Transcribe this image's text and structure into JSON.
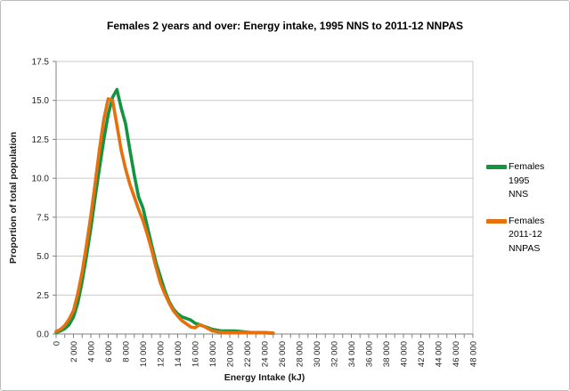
{
  "chart_data": {
    "type": "line",
    "title": "Females 2 years and over: Energy intake, 1995 NNS to 2011-12 NNPAS",
    "xlabel": "Energy Intake (kJ)",
    "ylabel": "Proportion of total population",
    "xlim": [
      0,
      48000
    ],
    "ylim": [
      0,
      17.5
    ],
    "grid": "horizontal",
    "legend_position": "right",
    "x_tick_minor_step": 1000,
    "x_tick_label_step": 2000,
    "y_tick_step": 2.5,
    "x_tick_labels": [
      "0",
      "2 000",
      "4 000",
      "6 000",
      "8 000",
      "10 000",
      "12 000",
      "14 000",
      "16 000",
      "18 000",
      "20 000",
      "22 000",
      "24 000",
      "26 000",
      "28 000",
      "30 000",
      "32 000",
      "34 000",
      "36 000",
      "38 000",
      "40 000",
      "42 000",
      "44 000",
      "46 000",
      "48 000"
    ],
    "y_tick_labels": [
      "0.0",
      "2.5",
      "5.0",
      "7.5",
      "10.0",
      "12.5",
      "15.0",
      "17.5"
    ],
    "series": [
      {
        "name": "Females 1995 NNS",
        "color": "#149441",
        "x_start": 0,
        "x_step": 500,
        "values": [
          0.1,
          0.2,
          0.35,
          0.6,
          1.1,
          2.0,
          3.4,
          5.0,
          6.8,
          8.8,
          10.7,
          12.5,
          14.1,
          15.2,
          15.7,
          14.5,
          13.5,
          11.8,
          10.2,
          8.8,
          8.1,
          6.9,
          5.7,
          4.6,
          3.7,
          2.8,
          2.1,
          1.6,
          1.3,
          1.1,
          1.0,
          0.9,
          0.7,
          0.6,
          0.5,
          0.4,
          0.3,
          0.25,
          0.2,
          0.2,
          0.2,
          0.2,
          0.18,
          0.15,
          0.12,
          0.1,
          0.1,
          0.1,
          0.08,
          0.06,
          0.05
        ]
      },
      {
        "name": "Females 2011-12 NNPAS",
        "color": "#E5700D",
        "x_start": 0,
        "x_step": 500,
        "values": [
          0.15,
          0.3,
          0.55,
          0.95,
          1.5,
          2.6,
          4.0,
          5.7,
          7.6,
          9.7,
          11.9,
          13.8,
          15.1,
          15.0,
          13.4,
          11.8,
          10.6,
          9.6,
          8.8,
          8.0,
          7.3,
          6.4,
          5.4,
          4.3,
          3.3,
          2.6,
          2.0,
          1.5,
          1.15,
          0.85,
          0.65,
          0.45,
          0.4,
          0.6,
          0.5,
          0.35,
          0.2,
          0.15,
          0.12,
          0.1,
          0.1,
          0.1,
          0.1,
          0.1,
          0.1,
          0.1,
          0.1,
          0.1,
          0.1,
          0.08,
          0.05
        ]
      }
    ]
  },
  "colors": {
    "axis": "#808080",
    "grid": "#c9c9c9",
    "plot_border": "#c9c9c9",
    "tick_text": "#262626",
    "frame_border": "#bdbdbd"
  }
}
